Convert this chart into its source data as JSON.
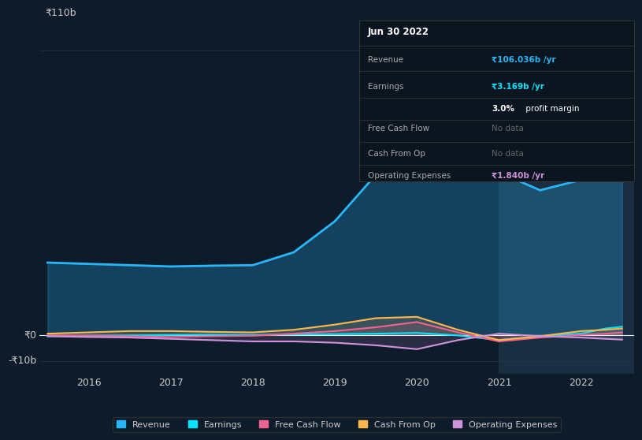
{
  "background_color": "#0d1b2a",
  "plot_bg_color": "#0d1b2a",
  "shaded_region_color": "#1a2e42",
  "grid_color": "#1e3a52",
  "text_color": "#cccccc",
  "ylabel_text": "₹110b",
  "ylabel_zero": "₹0",
  "ylabel_neg": "-₹10b",
  "x_labels": [
    "2016",
    "2017",
    "2018",
    "2019",
    "2020",
    "2021",
    "2022"
  ],
  "ylim": [
    -15,
    120
  ],
  "x_ticks": [
    2016,
    2017,
    2018,
    2019,
    2020,
    2021,
    2022
  ],
  "revenue": {
    "x": [
      2015.5,
      2016.0,
      2016.5,
      2017.0,
      2017.5,
      2018.0,
      2018.5,
      2019.0,
      2019.5,
      2020.0,
      2020.5,
      2021.0,
      2021.5,
      2022.0,
      2022.3,
      2022.5
    ],
    "y": [
      28,
      27.5,
      27.0,
      26.5,
      26.8,
      27.0,
      32,
      44,
      62,
      72,
      68,
      63,
      56,
      60,
      80,
      106
    ],
    "color": "#29b6f6",
    "label": "Revenue",
    "linewidth": 2.0
  },
  "earnings": {
    "x": [
      2015.5,
      2016.0,
      2016.5,
      2017.0,
      2017.5,
      2018.0,
      2018.5,
      2019.0,
      2019.5,
      2020.0,
      2020.5,
      2021.0,
      2021.5,
      2022.0,
      2022.3,
      2022.5
    ],
    "y": [
      -0.5,
      -0.3,
      -0.2,
      0.0,
      0.1,
      0.0,
      0.2,
      0.3,
      0.5,
      0.8,
      -0.2,
      -2.0,
      -0.5,
      0.5,
      2.5,
      3.2
    ],
    "color": "#00e5ff",
    "label": "Earnings",
    "linewidth": 1.5
  },
  "free_cash_flow": {
    "x": [
      2015.5,
      2016.0,
      2016.5,
      2017.0,
      2017.5,
      2018.0,
      2018.5,
      2019.0,
      2019.5,
      2020.0,
      2020.5,
      2021.0,
      2021.5,
      2022.0,
      2022.3,
      2022.5
    ],
    "y": [
      -0.2,
      -0.3,
      -0.5,
      -0.8,
      -0.5,
      -0.3,
      0.5,
      1.5,
      3.0,
      5.0,
      1.0,
      -2.5,
      -1.0,
      0.0,
      0.5,
      1.0
    ],
    "color": "#f06292",
    "label": "Free Cash Flow",
    "linewidth": 1.5
  },
  "cash_from_op": {
    "x": [
      2015.5,
      2016.0,
      2016.5,
      2017.0,
      2017.5,
      2018.0,
      2018.5,
      2019.0,
      2019.5,
      2020.0,
      2020.5,
      2021.0,
      2021.5,
      2022.0,
      2022.3,
      2022.5
    ],
    "y": [
      0.5,
      1.0,
      1.5,
      1.5,
      1.2,
      1.0,
      2.0,
      4.0,
      6.5,
      7.0,
      2.0,
      -2.0,
      -0.5,
      1.5,
      2.0,
      2.5
    ],
    "color": "#ffb74d",
    "label": "Cash From Op",
    "linewidth": 1.5
  },
  "operating_expenses": {
    "x": [
      2015.5,
      2016.0,
      2016.5,
      2017.0,
      2017.5,
      2018.0,
      2018.5,
      2019.0,
      2019.5,
      2020.0,
      2020.5,
      2021.0,
      2021.5,
      2022.0,
      2022.3,
      2022.5
    ],
    "y": [
      -0.5,
      -0.8,
      -1.0,
      -1.5,
      -2.0,
      -2.5,
      -2.5,
      -3.0,
      -4.0,
      -5.5,
      -2.0,
      0.5,
      -0.5,
      -1.0,
      -1.5,
      -1.8
    ],
    "color": "#ce93d8",
    "label": "Operating Expenses",
    "linewidth": 1.5
  },
  "shaded_start_x": 2021.0,
  "tooltip": {
    "title": "Jun 30 2022",
    "bg_color": "#0a1520",
    "border_color": "#333333",
    "text_color": "#aaaaaa",
    "title_color": "#ffffff",
    "revenue_value": "₹106.036b /yr",
    "revenue_color": "#29b6f6",
    "earnings_value": "₹3.169b /yr",
    "earnings_color": "#00e5ff",
    "profit_margin_bold": "3.0%",
    "profit_margin_rest": " profit margin",
    "no_data_color": "#666666",
    "opex_value": "₹1.840b /yr",
    "opex_color": "#ce93d8"
  },
  "legend_items": [
    {
      "label": "Revenue",
      "color": "#29b6f6"
    },
    {
      "label": "Earnings",
      "color": "#00e5ff"
    },
    {
      "label": "Free Cash Flow",
      "color": "#f06292"
    },
    {
      "label": "Cash From Op",
      "color": "#ffb74d"
    },
    {
      "label": "Operating Expenses",
      "color": "#ce93d8"
    }
  ]
}
